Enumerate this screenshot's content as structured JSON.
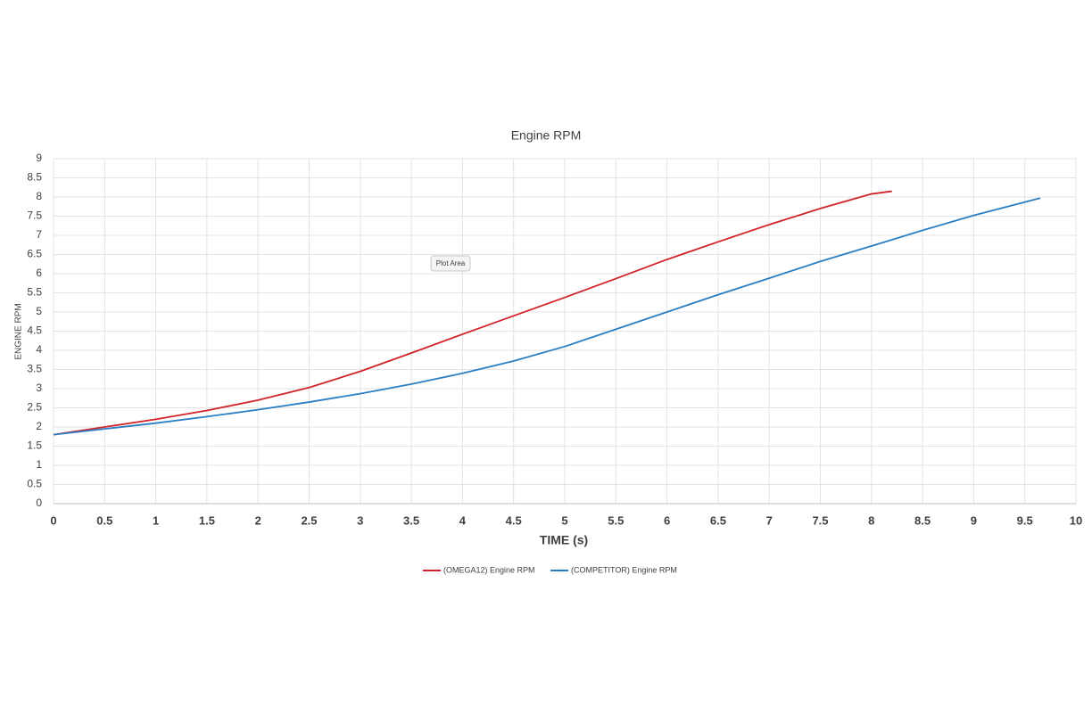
{
  "chart_data": {
    "type": "line",
    "title": "Engine RPM",
    "x_label": "TIME (s)",
    "y_label": "ENGINE RPM",
    "annotation": "Plot Area",
    "xlim": [
      0,
      10
    ],
    "xticks": [
      0,
      0.5,
      1,
      1.5,
      2,
      2.5,
      3,
      3.5,
      4,
      4.5,
      5,
      5.5,
      6,
      6.5,
      7,
      7.5,
      8,
      8.5,
      9,
      9.5,
      10
    ],
    "ylim": [
      0,
      9
    ],
    "yticks": [
      0,
      0.5,
      1,
      1.5,
      2,
      2.5,
      3,
      3.5,
      4,
      4.5,
      5,
      5.5,
      6,
      6.5,
      7,
      7.5,
      8,
      8.5,
      9
    ],
    "grid": true,
    "series": [
      {
        "name": "(OMEGA12) Engine RPM",
        "color": "#d0232a",
        "x": [
          0,
          0.5,
          1,
          1.5,
          2,
          2.5,
          3,
          3.5,
          4,
          4.5,
          5,
          5.5,
          6,
          6.5,
          7,
          7.5,
          8,
          8.2
        ],
        "values": [
          1.8,
          2.0,
          2.2,
          2.43,
          2.7,
          3.03,
          3.45,
          3.93,
          4.42,
          4.9,
          5.38,
          5.87,
          6.37,
          6.83,
          7.28,
          7.7,
          8.08,
          8.15
        ]
      },
      {
        "name": "(COMPETITOR) Engine RPM",
        "color": "#2a7fc4",
        "x": [
          0,
          0.5,
          1,
          1.5,
          2,
          2.5,
          3,
          3.5,
          4,
          4.5,
          5,
          5.5,
          6,
          6.5,
          7,
          7.5,
          8,
          8.5,
          9,
          9.65
        ],
        "values": [
          1.8,
          1.95,
          2.1,
          2.27,
          2.45,
          2.65,
          2.87,
          3.12,
          3.4,
          3.72,
          4.1,
          4.55,
          5.0,
          5.45,
          5.88,
          6.32,
          6.72,
          7.13,
          7.52,
          7.97
        ]
      }
    ]
  }
}
